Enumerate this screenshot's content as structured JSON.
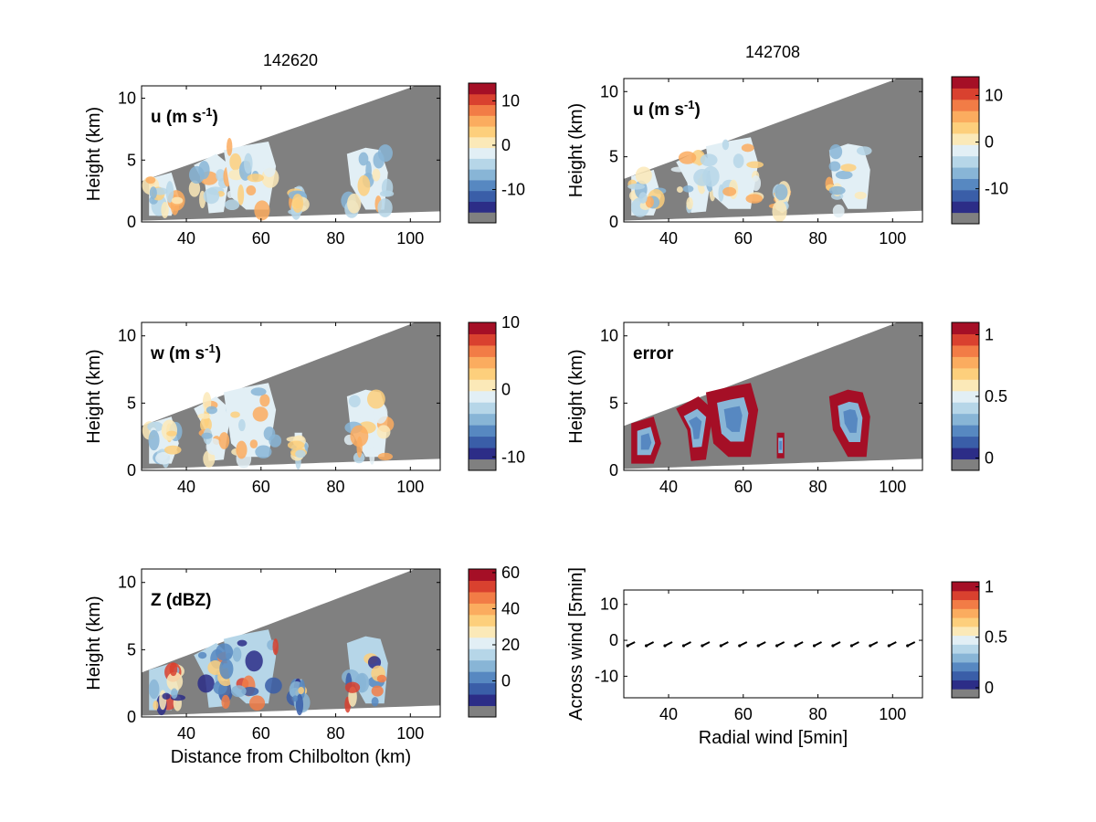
{
  "figure": {
    "col_titles": [
      "142620",
      "142708"
    ],
    "xlabel_left": "Distance from Chilbolton (km)",
    "palette": [
      "#808080",
      "#2c2d87",
      "#3a5ea8",
      "#5788c1",
      "#88b5d6",
      "#b6d6e8",
      "#e2eff5",
      "#fbe9b8",
      "#fdcf7c",
      "#fbac5f",
      "#f27c46",
      "#d9412f",
      "#a50f26"
    ]
  },
  "chart_data": [
    {
      "id": "u_left",
      "type": "heatmap",
      "panel_label": "u (m s",
      "panel_label_sup": "-1",
      "panel_label_close": ")",
      "column_title": "142620",
      "ylabel": "Height (km)",
      "xlabel": "",
      "xlim": [
        28,
        108
      ],
      "ylim": [
        0,
        11
      ],
      "xticks": [
        40,
        60,
        80,
        100
      ],
      "yticks": [
        0,
        5,
        10
      ],
      "colorbar": {
        "ticks": [
          10,
          0,
          -10
        ],
        "range": [
          -17.5,
          14
        ]
      }
    },
    {
      "id": "u_right",
      "type": "heatmap",
      "panel_label": "u (m s",
      "panel_label_sup": "-1",
      "panel_label_close": ")",
      "column_title": "142708",
      "ylabel": "Height (km)",
      "xlabel": "",
      "xlim": [
        28,
        108
      ],
      "ylim": [
        0,
        11
      ],
      "xticks": [
        40,
        60,
        80,
        100
      ],
      "yticks": [
        0,
        5,
        10
      ],
      "colorbar": {
        "ticks": [
          10,
          0,
          -10
        ],
        "range": [
          -17.5,
          14
        ]
      }
    },
    {
      "id": "w_left",
      "type": "heatmap",
      "panel_label": "w (m s",
      "panel_label_sup": "-1",
      "panel_label_close": ")",
      "ylabel": "Height (km)",
      "xlabel": "",
      "xlim": [
        28,
        108
      ],
      "ylim": [
        0,
        11
      ],
      "xticks": [
        40,
        60,
        80,
        100
      ],
      "yticks": [
        0,
        5,
        10
      ],
      "colorbar": {
        "ticks": [
          10,
          0,
          -10
        ],
        "range": [
          -12,
          10
        ]
      }
    },
    {
      "id": "error_right",
      "type": "heatmap",
      "panel_label": "error",
      "panel_label_sup": "",
      "panel_label_close": "",
      "ylabel": "Height (km)",
      "xlabel": "",
      "xlim": [
        28,
        108
      ],
      "ylim": [
        0,
        11
      ],
      "xticks": [
        40,
        60,
        80,
        100
      ],
      "yticks": [
        0,
        5,
        10
      ],
      "colorbar": {
        "ticks": [
          1,
          0.5,
          0
        ],
        "range": [
          -0.1,
          1.1
        ]
      }
    },
    {
      "id": "z_left",
      "type": "heatmap",
      "panel_label": "Z (dBZ)",
      "panel_label_sup": "",
      "panel_label_close": "",
      "ylabel": "Height (km)",
      "xlabel": "Distance from Chilbolton (km)",
      "xlim": [
        28,
        108
      ],
      "ylim": [
        0,
        11
      ],
      "xticks": [
        40,
        60,
        80,
        100
      ],
      "yticks": [
        0,
        5,
        10
      ],
      "colorbar": {
        "ticks": [
          60,
          40,
          20,
          0
        ],
        "range": [
          -20,
          62
        ]
      }
    },
    {
      "id": "vector_right",
      "type": "scatter",
      "panel_label": "",
      "panel_label_sup": "",
      "panel_label_close": "",
      "ylabel": "Across wind [5min]",
      "xlabel": "Radial wind [5min]",
      "xlim": [
        28,
        108
      ],
      "ylim": [
        -16,
        14
      ],
      "xticks": [
        40,
        60,
        80,
        100
      ],
      "yticks": [
        10,
        0,
        -10
      ],
      "x": [
        30,
        35,
        40,
        45,
        50,
        55,
        60,
        65,
        70,
        75,
        80,
        85,
        90,
        95,
        100,
        105
      ],
      "y": [
        -1,
        -1,
        -1,
        -1,
        -1,
        -1,
        -1,
        -1,
        -1,
        -1,
        -1,
        -1,
        -1,
        -1,
        -1,
        -1
      ],
      "colorbar": {
        "ticks": [
          1,
          0.5,
          0
        ],
        "range": [
          -0.1,
          1.05
        ]
      }
    }
  ]
}
